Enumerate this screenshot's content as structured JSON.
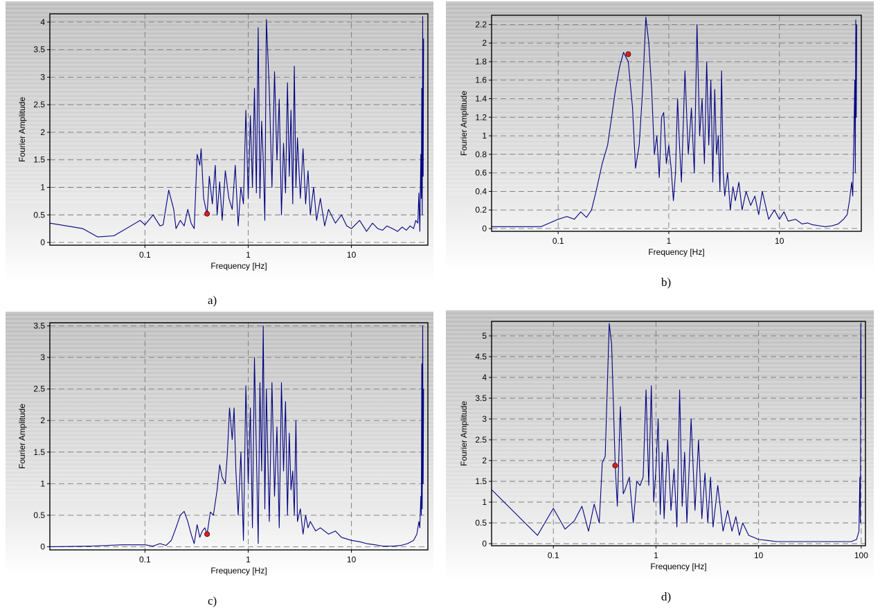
{
  "chart_data": [
    {
      "type": "line",
      "xscale": "log",
      "xlabel": "Frequency [Hz]",
      "ylabel": "Fourier Amplitude",
      "xlim": [
        0.012,
        55
      ],
      "ylim": [
        -0.05,
        4.15
      ],
      "xticks": [
        0.1,
        1,
        10
      ],
      "xtick_labels": [
        "0.1",
        "1",
        "10"
      ],
      "yticks": [
        0,
        0.5,
        1,
        1.5,
        2,
        2.5,
        3,
        3.5,
        4
      ],
      "ytick_labels": [
        "0",
        "0.5",
        "1",
        "1.5",
        "2",
        "2.5",
        "3",
        "3.5",
        "4"
      ],
      "grid": true,
      "line_color": "#000080",
      "marker_color": "#d92020",
      "caption": "a)",
      "marker": {
        "x": 0.4,
        "y": 0.52
      },
      "series": [
        {
          "x": [
            0.012,
            0.025,
            0.035,
            0.05,
            0.07,
            0.09,
            0.1,
            0.12,
            0.14,
            0.15,
            0.17,
            0.19,
            0.2,
            0.22,
            0.24,
            0.26,
            0.28,
            0.3,
            0.32,
            0.34,
            0.35,
            0.37,
            0.39,
            0.4,
            0.42,
            0.45,
            0.48,
            0.5,
            0.53,
            0.56,
            0.6,
            0.65,
            0.7,
            0.75,
            0.8,
            0.85,
            0.9,
            0.95,
            1.0,
            1.05,
            1.1,
            1.15,
            1.2,
            1.25,
            1.3,
            1.35,
            1.4,
            1.45,
            1.5,
            1.6,
            1.7,
            1.8,
            1.9,
            2.0,
            2.1,
            2.2,
            2.3,
            2.4,
            2.5,
            2.6,
            2.7,
            2.8,
            2.9,
            3.0,
            3.2,
            3.4,
            3.6,
            3.8,
            4.0,
            4.3,
            4.6,
            5.0,
            5.5,
            6.0,
            7.0,
            8.0,
            9.0,
            10,
            12,
            14,
            16,
            18,
            20,
            22,
            25,
            28,
            31,
            34,
            37,
            40,
            42,
            44,
            45,
            46,
            47,
            47.5,
            48,
            48.5,
            49,
            49.5,
            50
          ],
          "y": [
            0.35,
            0.25,
            0.1,
            0.12,
            0.28,
            0.4,
            0.32,
            0.5,
            0.3,
            0.32,
            0.95,
            0.6,
            0.25,
            0.4,
            0.3,
            0.6,
            0.35,
            0.25,
            1.6,
            1.4,
            1.7,
            0.8,
            0.6,
            0.5,
            1.2,
            0.7,
            1.4,
            0.5,
            1.1,
            0.4,
            1.3,
            0.8,
            0.6,
            1.4,
            0.3,
            1.0,
            0.7,
            2.4,
            0.8,
            2.3,
            1.0,
            2.8,
            0.9,
            3.9,
            0.8,
            2.2,
            1.5,
            0.4,
            4.05,
            2.8,
            1.0,
            3.1,
            1.5,
            2.6,
            0.5,
            1.8,
            0.9,
            2.9,
            1.2,
            2.4,
            0.7,
            3.2,
            1.0,
            1.9,
            0.8,
            1.7,
            0.7,
            1.3,
            0.5,
            1.0,
            0.4,
            0.8,
            0.3,
            0.6,
            0.35,
            0.5,
            0.3,
            0.25,
            0.4,
            0.2,
            0.35,
            0.25,
            0.22,
            0.3,
            0.25,
            0.2,
            0.28,
            0.22,
            0.3,
            0.25,
            0.4,
            0.35,
            0.9,
            0.2,
            1.6,
            0.8,
            2.8,
            0.5,
            4.1,
            1.2,
            3.7
          ]
        }
      ]
    },
    {
      "type": "line",
      "xscale": "log",
      "xlabel": "Frequency [Hz]",
      "ylabel": "Fourier Amplitude",
      "xlim": [
        0.025,
        55
      ],
      "ylim": [
        -0.03,
        2.3
      ],
      "xticks": [
        0.1,
        1,
        10
      ],
      "xtick_labels": [
        "0.1",
        "1",
        "10"
      ],
      "yticks": [
        0,
        0.2,
        0.4,
        0.6,
        0.8,
        1,
        1.2,
        1.4,
        1.6,
        1.8,
        2,
        2.2
      ],
      "ytick_labels": [
        "0",
        "0.2",
        "0.4",
        "0.6",
        "0.8",
        "1",
        "1.2",
        "1.4",
        "1.6",
        "1.8",
        "2",
        "2.2"
      ],
      "grid": true,
      "line_color": "#000080",
      "marker_color": "#d92020",
      "caption": "b)",
      "marker": {
        "x": 0.43,
        "y": 1.88
      },
      "series": [
        {
          "x": [
            0.025,
            0.05,
            0.07,
            0.1,
            0.12,
            0.14,
            0.16,
            0.18,
            0.2,
            0.22,
            0.25,
            0.28,
            0.3,
            0.33,
            0.36,
            0.39,
            0.43,
            0.47,
            0.5,
            0.54,
            0.58,
            0.62,
            0.66,
            0.7,
            0.74,
            0.78,
            0.82,
            0.86,
            0.9,
            0.95,
            1.0,
            1.05,
            1.1,
            1.15,
            1.2,
            1.25,
            1.3,
            1.4,
            1.5,
            1.6,
            1.7,
            1.8,
            1.9,
            2.0,
            2.1,
            2.2,
            2.3,
            2.4,
            2.5,
            2.6,
            2.7,
            2.8,
            2.9,
            3.0,
            3.1,
            3.2,
            3.4,
            3.6,
            3.8,
            4.0,
            4.3,
            4.6,
            5.0,
            5.5,
            6.0,
            6.5,
            7.0,
            8.0,
            9.0,
            10,
            11,
            12,
            14,
            16,
            18,
            20,
            23,
            26,
            30,
            34,
            38,
            41,
            43,
            45,
            46,
            47,
            48,
            48.5,
            49,
            49.5,
            50
          ],
          "y": [
            0.02,
            0.02,
            0.02,
            0.1,
            0.13,
            0.1,
            0.18,
            0.12,
            0.2,
            0.4,
            0.7,
            0.9,
            1.15,
            1.5,
            1.75,
            1.9,
            1.8,
            1.3,
            0.65,
            0.9,
            1.5,
            2.28,
            2.0,
            1.5,
            0.8,
            1.0,
            0.55,
            1.2,
            1.25,
            0.7,
            0.9,
            0.65,
            0.3,
            0.6,
            1.4,
            0.9,
            0.5,
            1.7,
            0.8,
            1.3,
            0.6,
            2.2,
            1.0,
            1.4,
            0.7,
            1.8,
            0.9,
            1.6,
            0.5,
            1.5,
            0.8,
            1.0,
            0.4,
            1.7,
            0.6,
            0.35,
            0.6,
            0.2,
            0.45,
            0.3,
            0.5,
            0.2,
            0.4,
            0.25,
            0.35,
            0.15,
            0.4,
            0.1,
            0.2,
            0.1,
            0.18,
            0.08,
            0.1,
            0.05,
            0.06,
            0.04,
            0.03,
            0.02,
            0.03,
            0.05,
            0.1,
            0.15,
            0.3,
            0.5,
            0.35,
            0.9,
            1.6,
            0.6,
            2.25,
            1.2,
            2.2
          ]
        }
      ]
    },
    {
      "type": "line",
      "xscale": "log",
      "xlabel": "Frequency [Hz]",
      "ylabel": "Fourier Amplitude",
      "xlim": [
        0.012,
        55
      ],
      "ylim": [
        -0.05,
        3.55
      ],
      "xticks": [
        0.1,
        1,
        10
      ],
      "xtick_labels": [
        "0.1",
        "1",
        "10"
      ],
      "yticks": [
        0,
        0.5,
        1,
        1.5,
        2,
        2.5,
        3,
        3.5
      ],
      "ytick_labels": [
        "0",
        "0.5",
        "1",
        "1.5",
        "2",
        "2.5",
        "3",
        "3.5"
      ],
      "grid": true,
      "line_color": "#000080",
      "marker_color": "#d92020",
      "caption": "c)",
      "marker": {
        "x": 0.4,
        "y": 0.2
      },
      "series": [
        {
          "x": [
            0.012,
            0.03,
            0.06,
            0.1,
            0.12,
            0.14,
            0.16,
            0.18,
            0.2,
            0.22,
            0.24,
            0.26,
            0.28,
            0.3,
            0.32,
            0.34,
            0.36,
            0.38,
            0.4,
            0.43,
            0.46,
            0.5,
            0.53,
            0.56,
            0.6,
            0.63,
            0.66,
            0.7,
            0.73,
            0.76,
            0.8,
            0.85,
            0.9,
            0.95,
            1.0,
            1.05,
            1.1,
            1.15,
            1.2,
            1.25,
            1.3,
            1.35,
            1.4,
            1.45,
            1.5,
            1.6,
            1.7,
            1.8,
            1.9,
            2.0,
            2.1,
            2.2,
            2.3,
            2.4,
            2.5,
            2.6,
            2.7,
            2.8,
            2.9,
            3.0,
            3.2,
            3.4,
            3.6,
            3.8,
            4.0,
            4.5,
            5.0,
            6.0,
            7.0,
            8.0,
            10,
            12,
            14,
            17,
            20,
            25,
            30,
            35,
            40,
            43,
            45,
            46,
            47,
            47.5,
            48,
            48.5,
            49,
            49.5,
            50
          ],
          "y": [
            0.0,
            0.01,
            0.03,
            0.03,
            0.01,
            0.05,
            0.02,
            0.1,
            0.3,
            0.5,
            0.56,
            0.4,
            0.2,
            0.05,
            0.35,
            0.15,
            0.25,
            0.3,
            0.2,
            0.55,
            0.5,
            0.9,
            1.3,
            1.1,
            1.0,
            1.5,
            2.2,
            1.7,
            2.2,
            1.2,
            0.5,
            1.5,
            0.1,
            2.55,
            1.0,
            2.2,
            0.3,
            3.0,
            1.5,
            0.05,
            2.6,
            1.2,
            3.5,
            0.6,
            2.5,
            0.4,
            2.6,
            0.8,
            1.9,
            0.3,
            2.6,
            1.2,
            2.3,
            0.5,
            1.8,
            0.9,
            1.2,
            0.5,
            2.0,
            0.4,
            0.6,
            0.2,
            0.5,
            0.3,
            0.4,
            0.25,
            0.3,
            0.2,
            0.25,
            0.15,
            0.1,
            0.08,
            0.05,
            0.03,
            0.01,
            0.01,
            0.02,
            0.05,
            0.1,
            0.2,
            0.4,
            0.3,
            0.8,
            0.5,
            2.9,
            0.6,
            3.5,
            1.0,
            2.5
          ]
        }
      ]
    },
    {
      "type": "line",
      "xscale": "log",
      "xlabel": "Frequency [Hz]",
      "ylabel": "Fourier Amplitude",
      "xlim": [
        0.025,
        110
      ],
      "ylim": [
        -0.05,
        5.35
      ],
      "xticks": [
        0.1,
        1,
        10,
        100
      ],
      "xtick_labels": [
        "0.1",
        "1",
        "10",
        "100"
      ],
      "yticks": [
        0,
        0.5,
        1,
        1.5,
        2,
        2.5,
        3,
        3.5,
        4,
        4.5,
        5
      ],
      "ytick_labels": [
        "0",
        "0.5",
        "1",
        "1.5",
        "2",
        "2.5",
        "3",
        "3.5",
        "4",
        "4.5",
        "5"
      ],
      "grid": true,
      "line_color": "#000080",
      "marker_color": "#d92020",
      "caption": "d)",
      "marker": {
        "x": 0.4,
        "y": 1.88
      },
      "series": [
        {
          "x": [
            0.025,
            0.07,
            0.1,
            0.13,
            0.16,
            0.19,
            0.22,
            0.25,
            0.28,
            0.3,
            0.32,
            0.35,
            0.37,
            0.4,
            0.42,
            0.45,
            0.48,
            0.5,
            0.55,
            0.6,
            0.65,
            0.7,
            0.75,
            0.8,
            0.85,
            0.9,
            0.95,
            1.0,
            1.05,
            1.1,
            1.15,
            1.2,
            1.3,
            1.4,
            1.5,
            1.6,
            1.7,
            1.8,
            1.9,
            2.0,
            2.2,
            2.4,
            2.6,
            2.8,
            3.0,
            3.2,
            3.4,
            3.6,
            4.0,
            4.5,
            5.0,
            5.5,
            6.0,
            6.5,
            7.0,
            8.0,
            9.0,
            10,
            12,
            15,
            20,
            30,
            40,
            60,
            80,
            90,
            95,
            97,
            98,
            99,
            100
          ],
          "y": [
            1.3,
            0.2,
            0.85,
            0.35,
            0.55,
            0.9,
            0.3,
            0.95,
            0.5,
            1.95,
            2.1,
            5.3,
            4.8,
            1.9,
            0.9,
            3.3,
            1.2,
            1.3,
            1.6,
            0.5,
            1.5,
            1.4,
            1.6,
            3.7,
            1.4,
            3.8,
            1.0,
            1.8,
            3.0,
            0.7,
            2.2,
            0.6,
            2.5,
            0.8,
            1.8,
            0.4,
            3.7,
            0.9,
            2.2,
            0.5,
            3.0,
            0.8,
            2.5,
            0.6,
            1.7,
            0.5,
            1.6,
            0.4,
            1.4,
            0.3,
            0.8,
            0.3,
            0.65,
            0.2,
            0.5,
            0.2,
            0.15,
            0.1,
            0.08,
            0.05,
            0.05,
            0.05,
            0.05,
            0.05,
            0.05,
            0.1,
            0.3,
            1.6,
            0.5,
            5.3,
            3.5
          ]
        }
      ]
    }
  ]
}
